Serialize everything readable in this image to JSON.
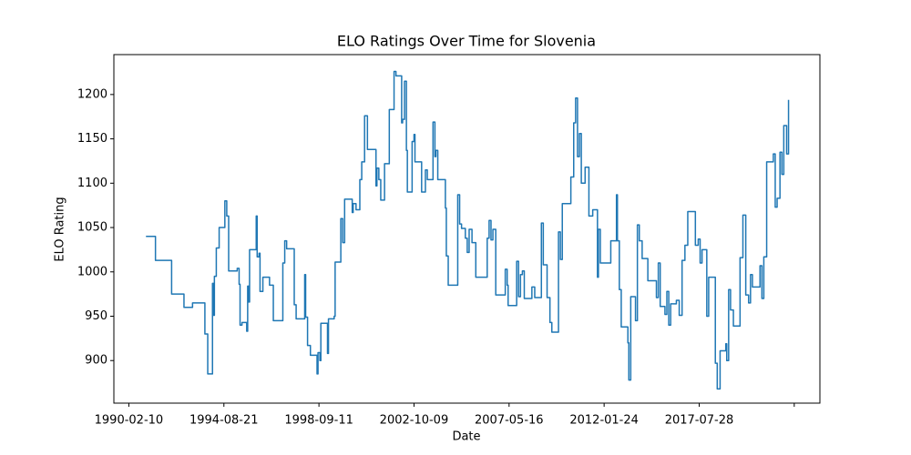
{
  "chart_data": {
    "type": "line",
    "title": "ELO Ratings Over Time for Slovenia",
    "x_label": "Date",
    "y_label": "ELO Rating",
    "drawstyle": "steps-post",
    "color": "#1f77b4",
    "x": [
      18,
      28,
      45,
      58,
      67,
      80,
      83,
      88,
      89,
      90,
      92,
      95,
      101,
      103,
      105,
      114,
      116,
      117,
      119,
      124,
      125,
      126,
      127,
      134,
      135,
      137,
      138,
      141,
      148,
      152,
      162,
      164,
      166,
      174,
      176,
      185,
      186,
      188,
      191,
      198,
      199,
      201,
      202,
      209,
      210,
      216,
      217,
      223,
      225,
      227,
      235,
      236,
      239,
      243,
      245,
      248,
      251,
      260,
      261,
      263,
      265,
      269,
      274,
      279,
      281,
      287,
      288,
      290,
      292,
      293,
      298,
      300,
      301,
      308,
      312,
      314,
      320,
      322,
      323,
      325,
      333,
      334,
      336,
      346,
      348,
      350,
      354,
      356,
      358,
      361,
      365,
      377,
      379,
      381,
      383,
      386,
      396,
      398,
      399,
      408,
      410,
      412,
      414,
      416,
      424,
      427,
      434,
      436,
      440,
      443,
      445,
      452,
      454,
      456,
      465,
      468,
      470,
      472,
      474,
      476,
      480,
      484,
      488,
      493,
      494,
      496,
      507,
      513,
      514,
      516,
      518,
      525,
      526,
      528,
      533,
      535,
      537,
      540,
      546,
      555,
      557,
      559,
      564,
      566,
      568,
      570,
      576,
      579,
      582,
      585,
      588,
      596,
      599,
      601,
      603,
      608,
      610,
      617,
      619,
      622,
      628,
      629,
      631,
      633,
      636,
      643,
      646,
      649,
      652,
      654,
      656,
      664,
      666,
      668,
      671,
      678,
      680,
      682,
      685,
      687,
      689,
      692,
      694
    ],
    "values": [
      1040,
      1013,
      975,
      960,
      965,
      930,
      885,
      987,
      951,
      995,
      1027,
      1050,
      1080,
      1063,
      1001,
      1004,
      986,
      940,
      943,
      933,
      984,
      966,
      1025,
      1063,
      1017,
      1021,
      978,
      994,
      985,
      945,
      1010,
      1035,
      1026,
      963,
      947,
      997,
      949,
      917,
      906,
      885,
      909,
      900,
      942,
      908,
      947,
      950,
      1011,
      1060,
      1033,
      1082,
      1067,
      1077,
      1070,
      1104,
      1124,
      1176,
      1138,
      1097,
      1117,
      1104,
      1081,
      1122,
      1183,
      1226,
      1221,
      1168,
      1172,
      1215,
      1137,
      1090,
      1147,
      1155,
      1124,
      1090,
      1115,
      1104,
      1169,
      1130,
      1137,
      1104,
      1072,
      1018,
      985,
      1087,
      1054,
      1049,
      1038,
      1022,
      1048,
      1033,
      994,
      1038,
      1058,
      1036,
      1048,
      974,
      1003,
      985,
      962,
      1012,
      972,
      997,
      1001,
      970,
      983,
      971,
      1055,
      1008,
      971,
      943,
      932,
      1045,
      1014,
      1077,
      1107,
      1168,
      1196,
      1130,
      1156,
      1100,
      1118,
      1063,
      1070,
      994,
      1048,
      1010,
      1035,
      1087,
      1035,
      980,
      938,
      920,
      878,
      972,
      945,
      1053,
      1035,
      1015,
      990,
      971,
      1010,
      961,
      952,
      978,
      940,
      964,
      968,
      951,
      1013,
      1030,
      1068,
      1030,
      1037,
      1010,
      1025,
      950,
      994,
      897,
      868,
      911,
      919,
      900,
      980,
      957,
      939,
      1016,
      1064,
      974,
      965,
      997,
      983,
      1007,
      970,
      1017,
      1124,
      1133,
      1073,
      1083,
      1135,
      1110,
      1165,
      1133,
      1194
    ],
    "xlim": [
      -15.75,
      727
    ],
    "xticks": [
      {
        "value": 0,
        "label": "1990-02-10"
      },
      {
        "value": 100,
        "label": "1994-08-21"
      },
      {
        "value": 200,
        "label": "1998-09-11"
      },
      {
        "value": 300,
        "label": "2002-10-09"
      },
      {
        "value": 400,
        "label": "2007-05-16"
      },
      {
        "value": 500,
        "label": "2012-01-24"
      },
      {
        "value": 600,
        "label": "2017-07-28"
      },
      {
        "value": 700,
        "label": null
      }
    ],
    "ylim": [
      852,
      1245
    ],
    "yticks": [
      900,
      950,
      1000,
      1050,
      1100,
      1150,
      1200
    ]
  }
}
